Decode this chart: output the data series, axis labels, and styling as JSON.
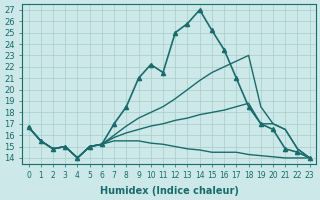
{
  "xlabel": "Humidex (Indice chaleur)",
  "ylabel": "",
  "xlim": [
    -0.5,
    23.5
  ],
  "ylim": [
    13.5,
    27.5
  ],
  "xticks": [
    0,
    1,
    2,
    3,
    4,
    5,
    6,
    7,
    8,
    9,
    10,
    11,
    12,
    13,
    14,
    15,
    16,
    17,
    18,
    19,
    20,
    21,
    22,
    23
  ],
  "yticks": [
    14,
    15,
    16,
    17,
    18,
    19,
    20,
    21,
    22,
    23,
    24,
    25,
    26,
    27
  ],
  "background_color": "#cce8e8",
  "grid_color": "#aacccc",
  "line_color": "#1a6b6b",
  "lines": [
    {
      "x": [
        0,
        1,
        2,
        3,
        4,
        5,
        6,
        7,
        8,
        9,
        10,
        11,
        12,
        13,
        14,
        15,
        16,
        17,
        18,
        19,
        20,
        21,
        22,
        23
      ],
      "y": [
        16.7,
        15.5,
        14.8,
        15.0,
        14.0,
        15.0,
        15.2,
        17.0,
        18.5,
        21.0,
        22.2,
        21.5,
        25.0,
        25.8,
        27.0,
        25.2,
        23.5,
        21.0,
        18.5,
        17.0,
        16.5,
        14.8,
        14.5,
        14.0
      ],
      "marker": "^",
      "markersize": 3,
      "linewidth": 1.2
    },
    {
      "x": [
        0,
        1,
        2,
        3,
        4,
        5,
        6,
        7,
        8,
        9,
        10,
        11,
        12,
        13,
        14,
        15,
        16,
        17,
        18,
        19,
        20,
        21,
        22,
        23
      ],
      "y": [
        16.7,
        15.5,
        14.8,
        15.0,
        14.0,
        15.0,
        15.2,
        16.0,
        16.8,
        17.5,
        18.0,
        18.5,
        19.2,
        20.0,
        20.8,
        21.5,
        22.0,
        22.5,
        23.0,
        18.5,
        17.0,
        16.5,
        14.8,
        14.0
      ],
      "marker": null,
      "markersize": 0,
      "linewidth": 1.0
    },
    {
      "x": [
        0,
        1,
        2,
        3,
        4,
        5,
        6,
        7,
        8,
        9,
        10,
        11,
        12,
        13,
        14,
        15,
        16,
        17,
        18,
        19,
        20,
        21,
        22,
        23
      ],
      "y": [
        16.7,
        15.5,
        14.8,
        15.0,
        14.0,
        15.0,
        15.2,
        15.8,
        16.2,
        16.5,
        16.8,
        17.0,
        17.3,
        17.5,
        17.8,
        18.0,
        18.2,
        18.5,
        18.8,
        17.0,
        17.0,
        16.5,
        14.8,
        14.0
      ],
      "marker": null,
      "markersize": 0,
      "linewidth": 1.0
    },
    {
      "x": [
        0,
        1,
        2,
        3,
        4,
        5,
        6,
        7,
        8,
        9,
        10,
        11,
        12,
        13,
        14,
        15,
        16,
        17,
        18,
        19,
        20,
        21,
        22,
        23
      ],
      "y": [
        16.7,
        15.5,
        14.8,
        15.0,
        14.0,
        15.0,
        15.2,
        15.5,
        15.5,
        15.5,
        15.3,
        15.2,
        15.0,
        14.8,
        14.7,
        14.5,
        14.5,
        14.5,
        14.3,
        14.2,
        14.1,
        14.0,
        14.0,
        14.0
      ],
      "marker": null,
      "markersize": 0,
      "linewidth": 1.0
    }
  ]
}
